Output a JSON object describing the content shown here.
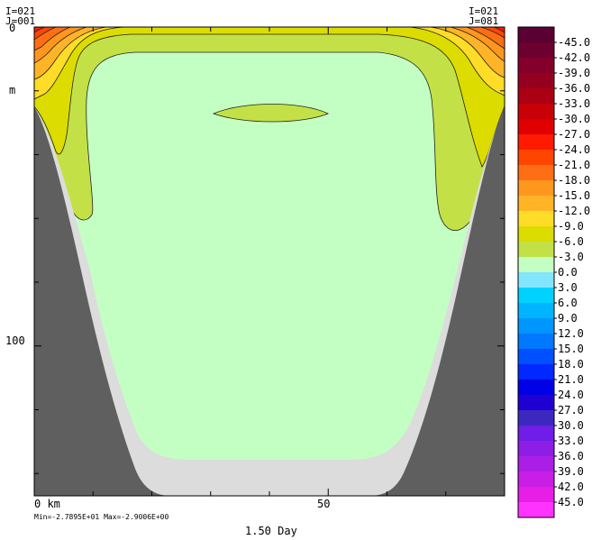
{
  "header": {
    "left_i": "I=021",
    "left_j": "J=001",
    "right_i": "I=021",
    "right_j": "J=081"
  },
  "footer": {
    "minmax": "Min=-2.7895E+01  Max=-2.9006E+00",
    "time": "1.50 Day"
  },
  "colors": {
    "land": "#5f5f5f",
    "shelf": "#dcdcdc",
    "frame": "#000000"
  },
  "chart_data": {
    "type": "contour",
    "x_axis": {
      "unit": "km",
      "tick_labels": [
        {
          "value": 0,
          "label": "0 km"
        },
        {
          "value": 50,
          "label": "50"
        }
      ],
      "range": [
        0,
        80
      ]
    },
    "y_axis": {
      "unit": "m",
      "unit_label": "m",
      "inverted": true,
      "tick_labels": [
        {
          "value": 0,
          "label": "0"
        },
        {
          "value": 100,
          "label": "100"
        }
      ],
      "range": [
        0,
        147
      ]
    },
    "min": -27.895,
    "max": -2.9006,
    "contour_interval": 3.0,
    "colorbar": [
      {
        "label": "-45.0",
        "color": "#5a0033"
      },
      {
        "label": "-42.0",
        "color": "#6e0030"
      },
      {
        "label": "-39.0",
        "color": "#82002a"
      },
      {
        "label": "-36.0",
        "color": "#96001f"
      },
      {
        "label": "-33.0",
        "color": "#aa0012"
      },
      {
        "label": "-30.0",
        "color": "#c80008"
      },
      {
        "label": "-27.0",
        "color": "#e10000"
      },
      {
        "label": "-24.0",
        "color": "#ff1a00"
      },
      {
        "label": "-21.0",
        "color": "#ff4600"
      },
      {
        "label": "-18.0",
        "color": "#ff6e14"
      },
      {
        "label": "-15.0",
        "color": "#ff961e"
      },
      {
        "label": "-12.0",
        "color": "#ffb428"
      },
      {
        "label": "-9.0",
        "color": "#ffdc28"
      },
      {
        "label": "-6.0",
        "color": "#dcdc00"
      },
      {
        "label": "-3.0",
        "color": "#c3e146"
      },
      {
        "label": "0.0",
        "color": "#c3ffc3"
      },
      {
        "label": "3.0",
        "color": "#82e6ff"
      },
      {
        "label": "6.0",
        "color": "#00d2ff"
      },
      {
        "label": "9.0",
        "color": "#00b4ff"
      },
      {
        "label": "12.0",
        "color": "#0096ff"
      },
      {
        "label": "15.0",
        "color": "#0078ff"
      },
      {
        "label": "18.0",
        "color": "#0050ff"
      },
      {
        "label": "21.0",
        "color": "#0028ff"
      },
      {
        "label": "24.0",
        "color": "#0000e6"
      },
      {
        "label": "27.0",
        "color": "#1e00d2"
      },
      {
        "label": "30.0",
        "color": "#3c28be"
      },
      {
        "label": "33.0",
        "color": "#6e1ee6"
      },
      {
        "label": "36.0",
        "color": "#8c1ee6"
      },
      {
        "label": "39.0",
        "color": "#aa1ee6"
      },
      {
        "label": "42.0",
        "color": "#c81ee6"
      },
      {
        "label": "45.0",
        "color": "#e61ee6"
      },
      {
        "label": "",
        "color": "#ff32ff"
      }
    ]
  }
}
